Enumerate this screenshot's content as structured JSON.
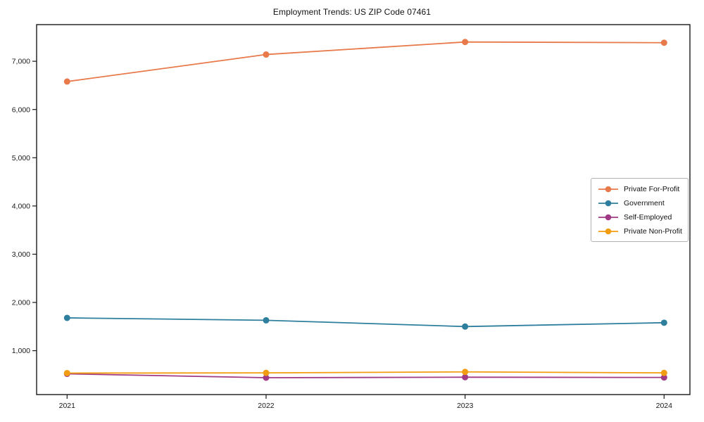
{
  "page": {
    "background": "#ffffff"
  },
  "chart_data": {
    "type": "line",
    "title": "Employment Trends: US ZIP Code 07461",
    "categories": [
      "2021",
      "2022",
      "2023",
      "2024"
    ],
    "series": [
      {
        "name": "Private For-Profit",
        "color": "#e8794a",
        "values": [
          6580,
          7140,
          7400,
          7385
        ]
      },
      {
        "name": "Government",
        "color": "#2e7f9e",
        "values": [
          1680,
          1630,
          1500,
          1580
        ]
      },
      {
        "name": "Self-Employed",
        "color": "#a03a85",
        "values": [
          520,
          440,
          450,
          445
        ]
      },
      {
        "name": "Private Non-Profit",
        "color": "#f29c11",
        "values": [
          535,
          540,
          560,
          540
        ]
      }
    ],
    "xlabel": "",
    "ylabel": "",
    "ylim": [
      90,
      7760
    ],
    "yticks": [
      1000,
      2000,
      3000,
      4000,
      5000,
      6000,
      7000
    ],
    "ytick_labels": [
      "1,000",
      "2,000",
      "3,000",
      "4,000",
      "5,000",
      "6,000",
      "7,000"
    ],
    "grid": false,
    "legend_position": "center right",
    "marker": "circle",
    "axis_color": "#1a1a1a"
  }
}
